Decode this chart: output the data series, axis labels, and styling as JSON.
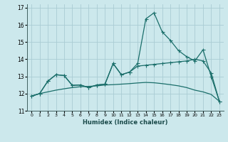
{
  "xlabel": "Humidex (Indice chaleur)",
  "xlim": [
    -0.5,
    23.5
  ],
  "ylim": [
    11,
    17.2
  ],
  "xticks": [
    0,
    1,
    2,
    3,
    4,
    5,
    6,
    7,
    8,
    9,
    10,
    11,
    12,
    13,
    14,
    15,
    16,
    17,
    18,
    19,
    20,
    21,
    22,
    23
  ],
  "yticks": [
    11,
    12,
    13,
    14,
    15,
    16,
    17
  ],
  "bg_color": "#cce8ec",
  "grid_color": "#aaccd4",
  "line_color": "#1a6e6a",
  "line1_x": [
    0,
    1,
    2,
    3,
    4,
    5,
    6,
    7,
    8,
    9,
    10,
    11,
    12,
    13,
    14,
    15,
    16,
    17,
    18,
    19,
    20,
    21,
    22,
    23
  ],
  "line1_y": [
    11.85,
    12.0,
    12.72,
    13.1,
    13.05,
    12.48,
    12.5,
    12.35,
    12.5,
    12.55,
    13.75,
    13.1,
    13.25,
    13.75,
    16.35,
    16.7,
    15.6,
    15.1,
    14.5,
    14.15,
    13.9,
    14.55,
    13.0,
    11.55
  ],
  "line2_x": [
    0,
    1,
    2,
    3,
    4,
    5,
    6,
    7,
    8,
    9,
    10,
    11,
    12,
    13,
    14,
    15,
    16,
    17,
    18,
    19,
    20,
    21,
    22,
    23
  ],
  "line2_y": [
    11.85,
    12.0,
    12.72,
    13.1,
    13.05,
    12.48,
    12.5,
    12.35,
    12.5,
    12.55,
    13.75,
    13.1,
    13.25,
    13.6,
    13.65,
    13.7,
    13.75,
    13.8,
    13.85,
    13.9,
    14.0,
    13.9,
    13.2,
    11.55
  ],
  "line3_x": [
    0,
    1,
    2,
    3,
    4,
    5,
    6,
    7,
    8,
    9,
    10,
    11,
    12,
    13,
    14,
    15,
    16,
    17,
    18,
    19,
    20,
    21,
    22,
    23
  ],
  "line3_y": [
    11.85,
    12.0,
    12.1,
    12.2,
    12.28,
    12.35,
    12.4,
    12.42,
    12.45,
    12.5,
    12.52,
    12.55,
    12.58,
    12.62,
    12.65,
    12.63,
    12.58,
    12.52,
    12.45,
    12.35,
    12.2,
    12.1,
    11.95,
    11.55
  ]
}
